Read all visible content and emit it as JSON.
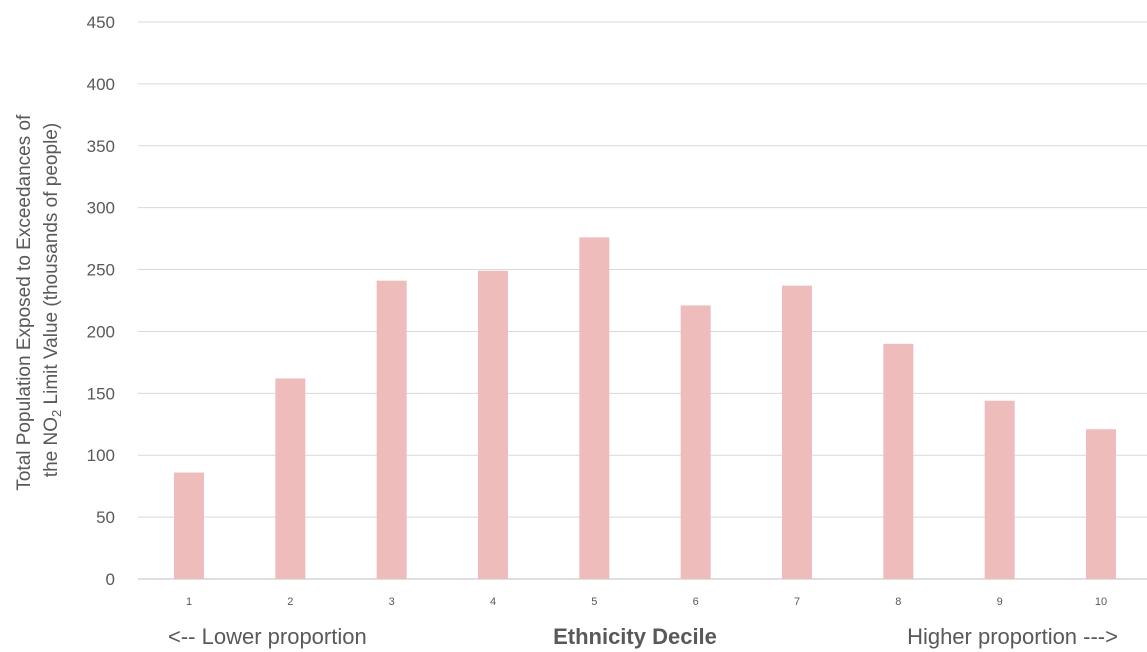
{
  "chart_data": {
    "type": "bar",
    "categories": [
      "1",
      "2",
      "3",
      "4",
      "5",
      "6",
      "7",
      "8",
      "9",
      "10"
    ],
    "values": [
      86,
      162,
      241,
      249,
      276,
      221,
      237,
      190,
      144,
      121
    ],
    "ylabel_line1": "Total Population Exposed to Exceedances of",
    "ylabel_line2_pre": "the NO",
    "ylabel_line2_sub": "2",
    "ylabel_line2_post": " Limit Value (thousands of people)",
    "xlabel": "Ethnicity Decile",
    "x_left_note": "<-- Lower proportion",
    "x_right_note": "Higher proportion --->",
    "ylim": [
      0,
      450
    ],
    "yticks": [
      0,
      50,
      100,
      150,
      200,
      250,
      300,
      350,
      400,
      450
    ],
    "grid": true,
    "bar_color": "#efbcbc"
  }
}
